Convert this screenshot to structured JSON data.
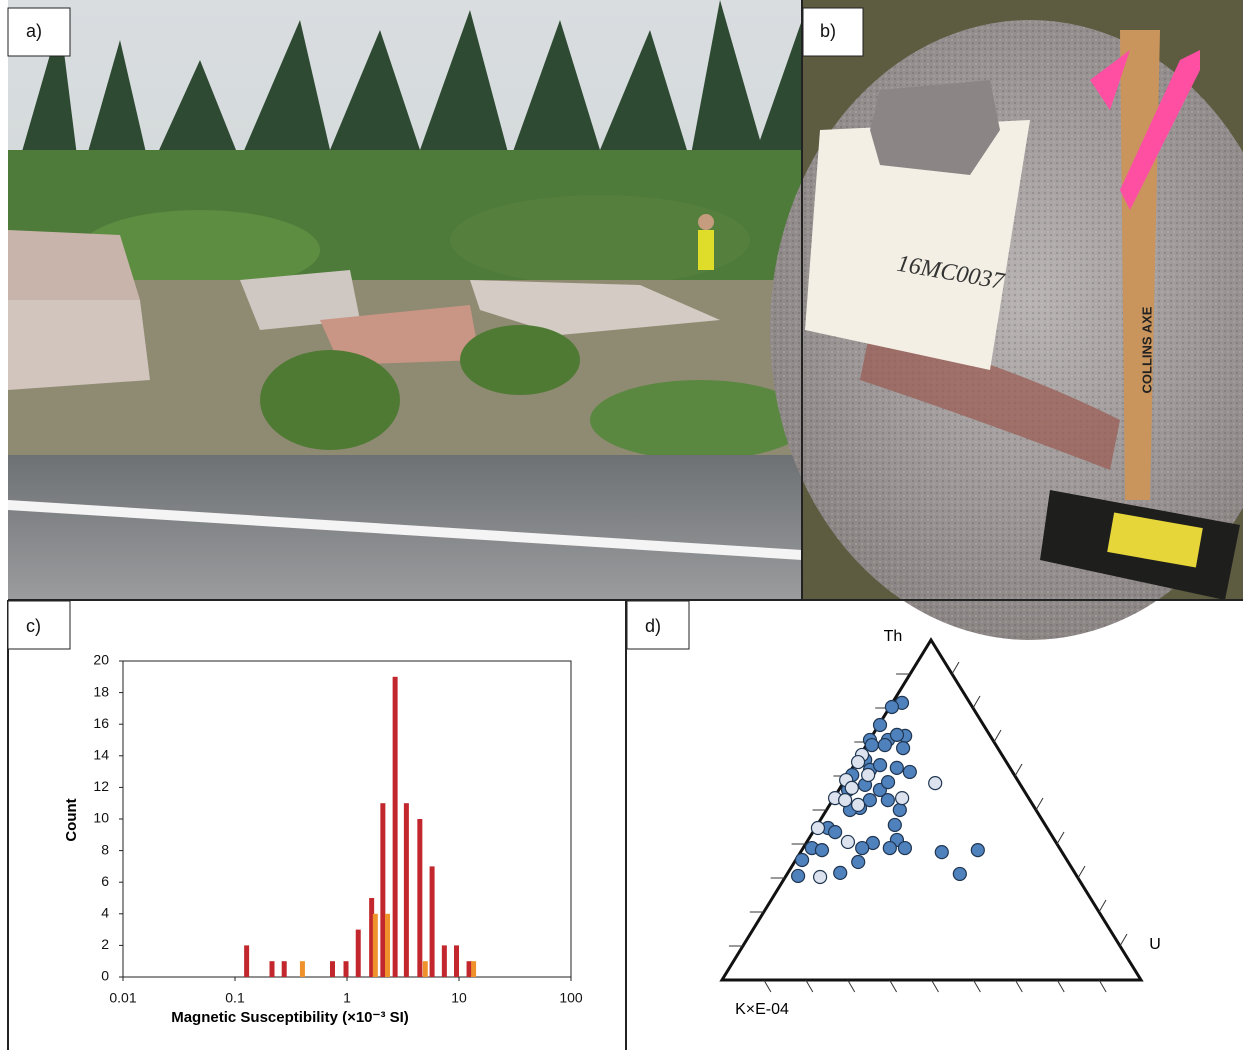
{
  "panels": {
    "a": "a)",
    "b": "b)",
    "c": "c)",
    "d": "d)"
  },
  "photo_b": {
    "sample_bag": "16MC0037",
    "axe_brand": "COLLINS AXE"
  },
  "chart_data": [
    {
      "type": "bar",
      "xscale": "log",
      "x_label": "Magnetic Susceptibility (×10⁻³ SI)",
      "y_label": "Count",
      "xlim": [
        0.01,
        100
      ],
      "xticks": [
        0.01,
        0.1,
        1,
        10,
        100
      ],
      "ylim": [
        0,
        20
      ],
      "yticks": [
        0,
        2,
        4,
        6,
        8,
        10,
        12,
        14,
        16,
        18,
        20
      ],
      "series": [
        {
          "color": "#c1272d",
          "x": [
            0.127,
            0.214,
            0.275,
            0.742,
            0.98,
            1.26,
            1.66,
            2.09,
            2.69,
            3.39,
            4.47,
            5.75,
            7.4,
            9.5,
            12.3
          ],
          "values": [
            2,
            1,
            1,
            1,
            1,
            3,
            5,
            11,
            19,
            11,
            10,
            7,
            2,
            2,
            1
          ]
        },
        {
          "color": "#f0922b",
          "x": [
            0.4,
            1.79,
            2.3,
            5.0,
            13.5
          ],
          "values": [
            1,
            4,
            4,
            1,
            1
          ]
        }
      ]
    },
    {
      "type": "ternary",
      "top_label": "Th",
      "right_label": "U",
      "left_label": "K×E-04",
      "ticks": [
        10,
        20,
        30,
        40,
        50,
        60,
        70,
        80,
        90
      ],
      "series": [
        {
          "color": "#4f81bd",
          "th": [
            81.5,
            80.3,
            75.0,
            70.6,
            70.6,
            71.8,
            72.1,
            69.1,
            69.1,
            68.2,
            64.7,
            60.3,
            61.8,
            63.2,
            62.4,
            61.2,
            57.4,
            55.9,
            58.2,
            55.9,
            52.9,
            52.9,
            50.6,
            50.0,
            45.6,
            44.7,
            43.5,
            40.3,
            41.2,
            38.8,
            38.8,
            38.8,
            38.8,
            37.6,
            38.2,
            35.3,
            30.6,
            31.5,
            34.7,
            31.2,
            38.2,
            50.0
          ],
          "u": [
            2.3,
            0.5,
            0.3,
            0.1,
            4.4,
            7.9,
            5.8,
            1.3,
            4.4,
            9.2,
            1.9,
            1.0,
            4.5,
            6.2,
            10.6,
            14.3,
            5.5,
            9.8,
            10.6,
            2.2,
            8.9,
            13.2,
            7.7,
            17.5,
            18.5,
            3.0,
            5.3,
            15.9,
            21.2,
            2.1,
            14.1,
            20.7,
            24.3,
            33.7,
            42.0,
            1.5,
            2.9,
            12.5,
            15.2,
            41.2,
            4.8,
            5.6
          ],
          "k": [
            16.2,
            19.2,
            24.7,
            29.3,
            25.0,
            20.3,
            22.1,
            29.6,
            26.5,
            22.6,
            33.4,
            38.7,
            33.7,
            30.6,
            27.0,
            24.5,
            37.1,
            34.3,
            31.2,
            41.9,
            38.2,
            33.9,
            41.7,
            32.5,
            35.9,
            52.3,
            51.2,
            43.8,
            37.6,
            59.1,
            47.1,
            40.5,
            36.9,
            28.7,
            19.8,
            63.2,
            66.5,
            56.0,
            50.1,
            27.6,
            57.0,
            44.4
          ]
        },
        {
          "color": "#dce3ef",
          "th": [
            66.2,
            64.1,
            60.3,
            58.8,
            56.5,
            53.5,
            52.9,
            51.5,
            53.5,
            57.9,
            44.7,
            40.6,
            30.3
          ],
          "u": [
            0.4,
            0.5,
            4.8,
            0.3,
            2.8,
            0.3,
            3.0,
            6.8,
            16.3,
            22.0,
            0.6,
            9.8,
            8.3
          ],
          "k": [
            33.4,
            35.4,
            34.9,
            40.9,
            40.7,
            46.2,
            44.1,
            41.7,
            30.2,
            20.1,
            54.7,
            49.6,
            61.4
          ]
        }
      ]
    }
  ]
}
